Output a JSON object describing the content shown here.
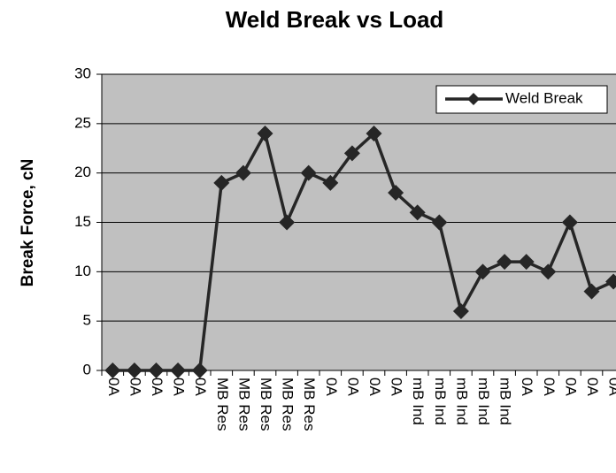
{
  "chart_data": {
    "type": "line",
    "title": "Weld Break vs Load",
    "y_label": "Break Force, cN",
    "categories": [
      "0A",
      "0A",
      "0A",
      "0A",
      "0A",
      "MB Res",
      "MB Res",
      "MB Res",
      "MB Res",
      "MB Res",
      "0A",
      "0A",
      "0A",
      "0A",
      "mB Ind",
      "mB Ind",
      "mB Ind",
      "mB Ind",
      "mB Ind",
      "0A",
      "0A",
      "0A",
      "0A",
      "0A"
    ],
    "series": [
      {
        "name": "Weld Break",
        "color": "#262626",
        "values": [
          0,
          0,
          0,
          0,
          0,
          19,
          20,
          24,
          15,
          20,
          19,
          22,
          24,
          18,
          16,
          15,
          6,
          10,
          11,
          11,
          10,
          15,
          8,
          9
        ]
      }
    ],
    "ylim": [
      0,
      30
    ],
    "yticks": [
      0,
      5,
      10,
      15,
      20,
      25,
      30
    ],
    "grid": true,
    "legend": "upper right"
  }
}
